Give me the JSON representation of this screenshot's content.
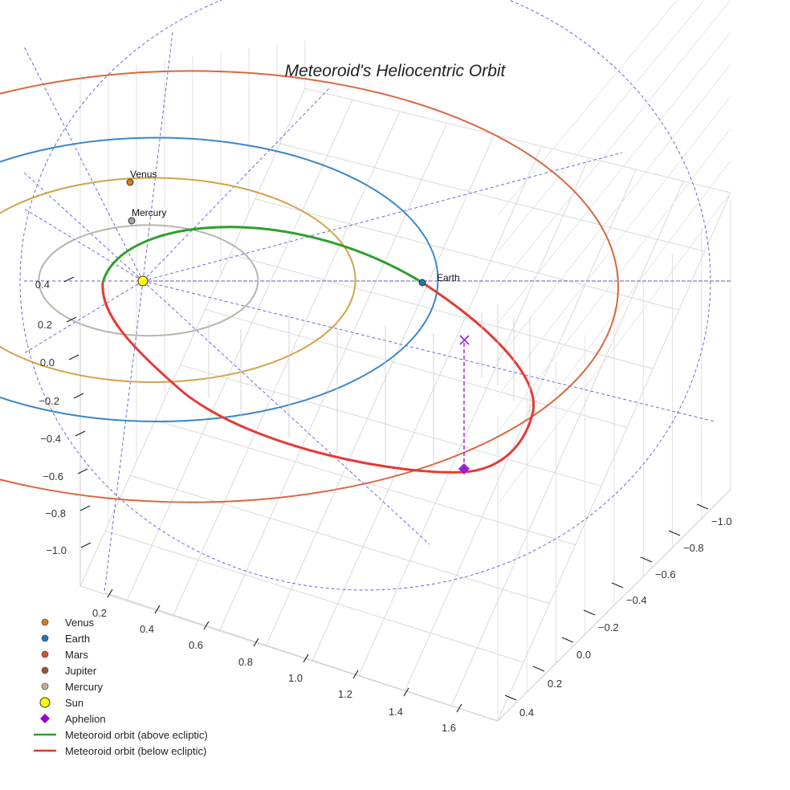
{
  "chart_data": {
    "type": "line",
    "projection": "3d",
    "title": "Meteoroid's Heliocentric Orbit",
    "grid": true,
    "legend_position": "bottom-left",
    "axes": {
      "x": {
        "ticks": [
          "0.2",
          "0.4",
          "0.6",
          "0.8",
          "1.0",
          "1.2",
          "1.4",
          "1.6"
        ]
      },
      "y": {
        "ticks": [
          "−1.0",
          "−0.8",
          "−0.6",
          "−0.4",
          "−0.2",
          "0.0",
          "0.2",
          "0.4"
        ]
      },
      "z": {
        "ticks": [
          "0.4",
          "0.2",
          "0.0",
          "−0.2",
          "−0.4",
          "−0.6",
          "−0.8",
          "−1.0"
        ]
      }
    },
    "planet_orbits": [
      {
        "name": "Mercury",
        "semi_major_axis_au": 0.39,
        "color": "#bcb3ab"
      },
      {
        "name": "Venus",
        "semi_major_axis_au": 0.72,
        "color": "#d4a24a"
      },
      {
        "name": "Earth",
        "semi_major_axis_au": 1.0,
        "color": "#3a86c8"
      },
      {
        "name": "Mars",
        "semi_major_axis_au": 1.52,
        "color": "#d9673f"
      }
    ],
    "planet_labels": [
      {
        "name": "Venus",
        "color": "#d08020"
      },
      {
        "name": "Mercury",
        "color": "#aaa29c"
      },
      {
        "name": "Earth",
        "color": "#1f77b4"
      }
    ],
    "meteoroid_orbit": {
      "perihelion_au": 0.32,
      "aphelion_au": 1.45,
      "above_color": "#2ca02c",
      "below_color": "#e53935"
    },
    "aphelion_marker_color": "#9b1fd8",
    "legend": [
      {
        "label": "Venus",
        "marker": "dot",
        "color": "#d08020"
      },
      {
        "label": "Earth",
        "marker": "dot",
        "color": "#1f77b4"
      },
      {
        "label": "Mars",
        "marker": "dot",
        "color": "#d4502a"
      },
      {
        "label": "Jupiter",
        "marker": "dot",
        "color": "#a0522d"
      },
      {
        "label": "Mercury",
        "marker": "dot",
        "color": "#c8a89e"
      },
      {
        "label": "Sun",
        "marker": "sun",
        "color": "#ffff00"
      },
      {
        "label": "Aphelion",
        "marker": "diamond",
        "color": "#9400d3"
      },
      {
        "label": "Meteoroid orbit (above ecliptic)",
        "marker": "line",
        "color": "#2ca02c"
      },
      {
        "label": "Meteoroid orbit (below ecliptic)",
        "marker": "line",
        "color": "#e53935"
      }
    ]
  }
}
